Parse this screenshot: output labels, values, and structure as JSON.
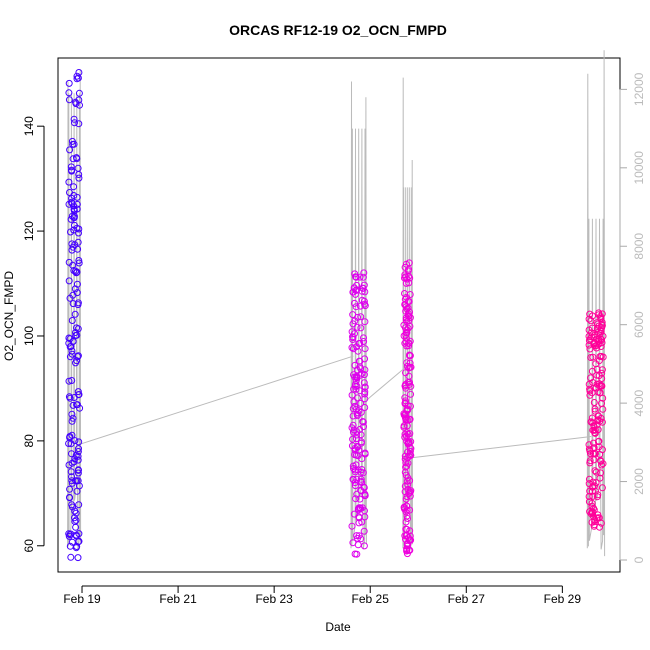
{
  "chart_data": {
    "type": "scatter",
    "title": "ORCAS RF12-19 O2_OCN_FMPD",
    "xlabel": "Date",
    "ylabel": "O2_OCN_FMPD",
    "x_tick_labels": [
      "Feb 19",
      "Feb 21",
      "Feb 23",
      "Feb 25",
      "Feb 27",
      "Feb 29"
    ],
    "x_tick_values": [
      19,
      21,
      23,
      25,
      27,
      29
    ],
    "xlim": [
      18.5,
      30.2
    ],
    "ylim": [
      55,
      153
    ],
    "y_ticks": [
      60,
      80,
      100,
      120,
      140
    ],
    "y2lim": [
      0,
      12800
    ],
    "y2_ticks": [
      0,
      2000,
      4000,
      6000,
      8000,
      10000,
      12000
    ],
    "colors": {
      "flight_start": "#3300ff",
      "flight_end": "#ff0099",
      "secondary_line": "#bbbbbb",
      "secondary_axis": "#bbbbbb"
    },
    "series": [
      {
        "flights": [
          {
            "x_start": 18.72,
            "x_end": 18.95,
            "y_min": 57.5,
            "y_max": 151.0,
            "color": "#4400ff"
          },
          {
            "x_start": 24.62,
            "x_end": 24.9,
            "y_min": 58.0,
            "y_max": 113.5,
            "color": "#dd00ee"
          },
          {
            "x_start": 25.7,
            "x_end": 25.85,
            "y_min": 58.5,
            "y_max": 114.0,
            "color": "#ee00dd"
          },
          {
            "x_start": 29.55,
            "x_end": 29.85,
            "y_min": 63.5,
            "y_max": 104.5,
            "color": "#ff0099"
          }
        ]
      },
      {
        "axis": "right",
        "flights": [
          {
            "x_start": 18.7,
            "x_end": 18.97,
            "peaks": [
              12200,
              11900,
              12500,
              400
            ]
          },
          {
            "x_start": 24.6,
            "x_end": 24.92,
            "peaks": [
              12200,
              11000,
              11800,
              400
            ]
          },
          {
            "x_start": 25.68,
            "x_end": 25.88,
            "peaks": [
              12300,
              9500,
              10200,
              400
            ]
          },
          {
            "x_start": 29.52,
            "x_end": 29.88,
            "peaks": [
              12400,
              8700,
              13000,
              100
            ]
          }
        ],
        "connectors": [
          {
            "x": [
              18.95,
              24.65
            ],
            "y": [
              2950,
              5200
            ]
          },
          {
            "x": [
              24.85,
              25.72
            ],
            "y": [
              4000,
              4900
            ]
          },
          {
            "x": [
              25.82,
              29.6
            ],
            "y": [
              2600,
              3150
            ]
          }
        ]
      }
    ]
  }
}
